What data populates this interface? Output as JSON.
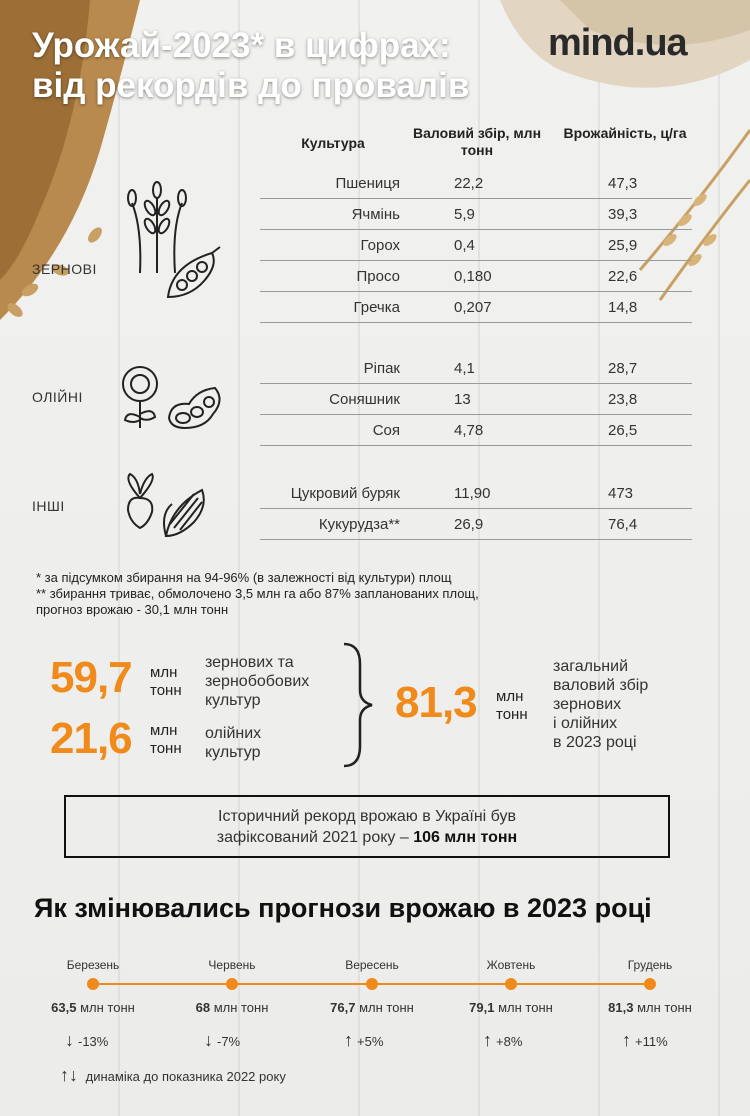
{
  "title": {
    "line1": "Урожай-2023* в цифрах:",
    "line2": "від рекордів до провалів"
  },
  "logo": "mind.ua",
  "table": {
    "headers": {
      "crop": "Культура",
      "gross": "Валовий збір, млн тонн",
      "yield": "Врожайність, ц/га"
    },
    "groups": [
      {
        "name": "ЗЕРНОВІ",
        "icons": [
          "wheat-icon",
          "peas-icon"
        ],
        "rows": [
          {
            "crop": "Пшениця",
            "gross": "22,2",
            "yield": "47,3"
          },
          {
            "crop": "Ячмінь",
            "gross": "5,9",
            "yield": "39,3"
          },
          {
            "crop": "Горох",
            "gross": "0,4",
            "yield": "25,9"
          },
          {
            "crop": "Просо",
            "gross": "0,180",
            "yield": "22,6"
          },
          {
            "crop": "Гречка",
            "gross": "0,207",
            "yield": "14,8"
          }
        ]
      },
      {
        "name": "ОЛІЙНІ",
        "icons": [
          "sunflower-icon",
          "soybean-icon"
        ],
        "rows": [
          {
            "crop": "Ріпак",
            "gross": "4,1",
            "yield": "28,7"
          },
          {
            "crop": "Соняшник",
            "gross": "13",
            "yield": "23,8"
          },
          {
            "crop": "Соя",
            "gross": "4,78",
            "yield": "26,5"
          }
        ]
      },
      {
        "name": "ІНШІ",
        "icons": [
          "beet-icon",
          "corn-icon"
        ],
        "rows": [
          {
            "crop": "Цукровий буряк",
            "gross": "11,90",
            "yield": "473"
          },
          {
            "crop": "Кукурудза**",
            "gross": "26,9",
            "yield": "76,4"
          }
        ]
      }
    ]
  },
  "notes": {
    "n1": "* за підсумком збирання на 94-96% (в залежності від культури) площ",
    "n2": "** збирання триває, обмолочено 3,5 млн га або 87% запланованих площ,",
    "n3": "прогноз врожаю - 30,1 млн тонн"
  },
  "totals": {
    "grain_value": "59,7",
    "grain_unit1": "млн",
    "grain_unit2": "тонн",
    "grain_desc1": "зернових та",
    "grain_desc2": "зернобобових",
    "grain_desc3": "культур",
    "oil_value": "21,6",
    "oil_unit1": "млн",
    "oil_unit2": "тонн",
    "oil_desc1": "олійних",
    "oil_desc2": "культур",
    "total_value": "81,3",
    "total_unit1": "млн",
    "total_unit2": "тонн",
    "total_desc1": "загальний",
    "total_desc2": "валовий збір",
    "total_desc3": "зернових",
    "total_desc4": "і олійних",
    "total_desc5": "в 2023 році"
  },
  "record": {
    "line1": "Історичний рекорд врожаю в Україні був",
    "line2": "зафіксований 2021 року –",
    "bold": "106 млн тонн"
  },
  "timeline_title": "Як змінювались прогнози врожаю в 2023 році",
  "timeline_unit": "млн тонн",
  "legend": "динаміка до показника 2022 року",
  "colors": {
    "accent": "#f08a1a",
    "text": "#2a2a2a"
  },
  "chart_data": {
    "type": "line",
    "x": [
      "Березень",
      "Червень",
      "Вересень",
      "Жовтень",
      "Грудень"
    ],
    "series": [
      {
        "values": [
          63.5,
          68,
          76.7,
          79.1,
          81.3
        ],
        "labels": [
          "63,5",
          "68",
          "76,7",
          "79,1",
          "81,3"
        ],
        "changes": [
          "-13%",
          "-7%",
          "+5%",
          "+8%",
          "+11%"
        ],
        "directions": [
          "down",
          "down",
          "up",
          "up",
          "up"
        ]
      }
    ]
  }
}
